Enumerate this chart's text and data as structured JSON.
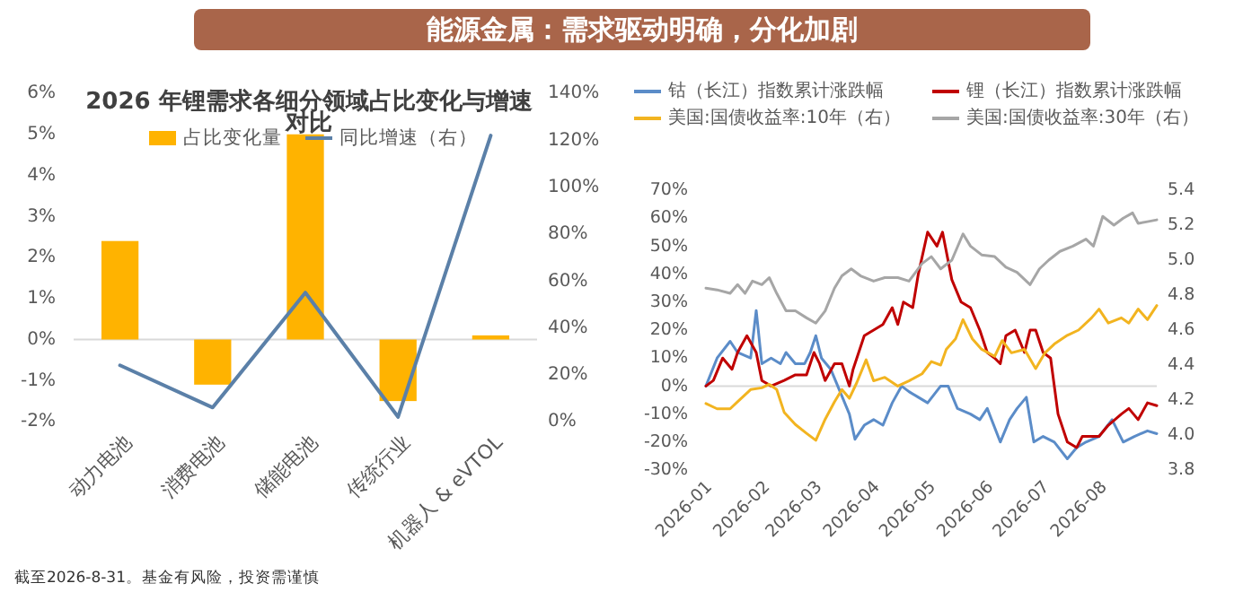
{
  "chart_data": [
    {
      "type": "other",
      "title": "能源金属：需求驱动明确，分化加剧"
    },
    {
      "type": "bar",
      "title": "2026 年锂需求各细分领域占比变化与增速对比",
      "categories": [
        "动力电池",
        "消费电池",
        "储能电池",
        "传统行业",
        "机器人 & eVTOL"
      ],
      "series": [
        {
          "name": "占比变化量",
          "color": "#ffb300",
          "values": [
            2.4,
            -1.1,
            5.0,
            -1.5,
            0.1
          ]
        },
        {
          "name": "同比增速（右）",
          "type": "line",
          "axis": "y2",
          "color": "#5b80a8",
          "values": [
            24,
            6,
            55,
            2,
            122
          ]
        }
      ],
      "ylim": [
        -2,
        6
      ],
      "yticks": [
        {
          "value": -2,
          "label": "-2%"
        },
        {
          "value": -1,
          "label": "-1%"
        },
        {
          "value": 0,
          "label": "0%"
        },
        {
          "value": 1,
          "label": "1%"
        },
        {
          "value": 2,
          "label": "2%"
        },
        {
          "value": 3,
          "label": "3%"
        },
        {
          "value": 4,
          "label": "4%"
        },
        {
          "value": 5,
          "label": "5%"
        },
        {
          "value": 6,
          "label": "6%"
        }
      ],
      "y2lim": [
        0,
        140
      ],
      "y2ticks": [
        {
          "value": 0,
          "label": "0%"
        },
        {
          "value": 20,
          "label": "20%"
        },
        {
          "value": 40,
          "label": "40%"
        },
        {
          "value": 60,
          "label": "60%"
        },
        {
          "value": 80,
          "label": "80%"
        },
        {
          "value": 100,
          "label": "100%"
        },
        {
          "value": 120,
          "label": "120%"
        },
        {
          "value": 140,
          "label": "140%"
        }
      ],
      "legend": "top",
      "annotations": [
        "截至2026-8-31。基金有风险，投资需谨慎"
      ]
    },
    {
      "type": "line",
      "series": [
        {
          "name": "钴（长江）指数累计涨跌幅",
          "color": "#5b8cc8",
          "x": [
            "2026-01-01",
            "2026-01-07",
            "2026-01-14",
            "2026-01-18",
            "2026-01-25",
            "2026-01-28",
            "2026-01-31",
            "2026-02-05",
            "2026-02-10",
            "2026-02-13",
            "2026-02-18",
            "2026-02-23",
            "2026-02-26",
            "2026-03-01",
            "2026-03-04",
            "2026-03-09",
            "2026-03-14",
            "2026-03-19",
            "2026-03-22",
            "2026-03-27",
            "2026-04-01",
            "2026-04-06",
            "2026-04-11",
            "2026-04-16",
            "2026-04-20",
            "2026-04-25",
            "2026-04-30",
            "2026-05-07",
            "2026-05-11",
            "2026-05-16",
            "2026-05-23",
            "2026-05-28",
            "2026-06-01",
            "2026-06-08",
            "2026-06-13",
            "2026-06-17",
            "2026-06-22",
            "2026-06-26",
            "2026-07-01",
            "2026-07-07",
            "2026-07-14",
            "2026-07-19",
            "2026-07-24",
            "2026-07-31",
            "2026-08-07",
            "2026-08-13",
            "2026-08-19",
            "2026-08-26",
            "2026-08-31"
          ],
          "values": [
            0,
            10,
            16,
            12,
            10,
            27,
            8,
            10,
            8,
            12,
            8,
            8,
            12,
            18,
            10,
            6,
            -2,
            -10,
            -19,
            -14,
            -12,
            -14,
            -6,
            0,
            -2,
            -4,
            -6,
            0,
            0,
            -8,
            -10,
            -12,
            -8,
            -20,
            -12,
            -8,
            -4,
            -20,
            -18,
            -20,
            -26,
            -22,
            -20,
            -18,
            -12,
            -20,
            -18,
            -16,
            -17
          ]
        },
        {
          "name": "锂（长江）指数累计涨跌幅",
          "color": "#c00000",
          "x": [
            "2026-01-01",
            "2026-01-05",
            "2026-01-10",
            "2026-01-15",
            "2026-01-18",
            "2026-01-23",
            "2026-01-28",
            "2026-01-31",
            "2026-02-05",
            "2026-02-12",
            "2026-02-18",
            "2026-02-24",
            "2026-02-28",
            "2026-03-03",
            "2026-03-06",
            "2026-03-11",
            "2026-03-15",
            "2026-03-19",
            "2026-03-21",
            "2026-03-27",
            "2026-04-01",
            "2026-04-06",
            "2026-04-11",
            "2026-04-14",
            "2026-04-17",
            "2026-04-22",
            "2026-04-25",
            "2026-04-30",
            "2026-05-05",
            "2026-05-08",
            "2026-05-13",
            "2026-05-18",
            "2026-05-23",
            "2026-05-28",
            "2026-06-01",
            "2026-06-05",
            "2026-06-08",
            "2026-06-11",
            "2026-06-16",
            "2026-06-21",
            "2026-06-24",
            "2026-06-27",
            "2026-07-01",
            "2026-07-05",
            "2026-07-09",
            "2026-07-14",
            "2026-07-19",
            "2026-07-22",
            "2026-07-27",
            "2026-07-31",
            "2026-08-05",
            "2026-08-12",
            "2026-08-16",
            "2026-08-21",
            "2026-08-26",
            "2026-08-31"
          ],
          "values": [
            0,
            2,
            10,
            6,
            12,
            18,
            12,
            2,
            0,
            2,
            4,
            4,
            12,
            8,
            2,
            8,
            8,
            0,
            6,
            18,
            20,
            22,
            28,
            22,
            30,
            28,
            40,
            55,
            50,
            55,
            38,
            30,
            28,
            20,
            12,
            10,
            8,
            18,
            20,
            12,
            20,
            20,
            12,
            10,
            -10,
            -20,
            -22,
            -18,
            -18,
            -18,
            -14,
            -10,
            -8,
            -12,
            -6,
            -7
          ]
        },
        {
          "name": "美国:国债收益率:10年（右）",
          "color": "#f2b420",
          "axis": "y2",
          "x": [
            "2026-01-01",
            "2026-01-07",
            "2026-01-14",
            "2026-01-18",
            "2026-01-25",
            "2026-01-31",
            "2026-02-04",
            "2026-02-08",
            "2026-02-12",
            "2026-02-18",
            "2026-02-24",
            "2026-03-01",
            "2026-03-06",
            "2026-03-11",
            "2026-03-15",
            "2026-03-19",
            "2026-03-23",
            "2026-03-28",
            "2026-04-01",
            "2026-04-07",
            "2026-04-14",
            "2026-04-20",
            "2026-04-27",
            "2026-05-02",
            "2026-05-07",
            "2026-05-10",
            "2026-05-15",
            "2026-05-19",
            "2026-05-24",
            "2026-05-29",
            "2026-06-05",
            "2026-06-09",
            "2026-06-14",
            "2026-06-21",
            "2026-06-27",
            "2026-07-02",
            "2026-07-07",
            "2026-07-14",
            "2026-07-20",
            "2026-07-27",
            "2026-07-31",
            "2026-08-05",
            "2026-08-12",
            "2026-08-16",
            "2026-08-21",
            "2026-08-26",
            "2026-08-31"
          ],
          "values": [
            4.18,
            4.15,
            4.15,
            4.19,
            4.26,
            4.27,
            4.29,
            4.26,
            4.13,
            4.06,
            4.01,
            3.97,
            4.09,
            4.19,
            4.26,
            4.21,
            4.3,
            4.43,
            4.31,
            4.33,
            4.28,
            4.31,
            4.35,
            4.42,
            4.4,
            4.49,
            4.55,
            4.66,
            4.55,
            4.49,
            4.45,
            4.54,
            4.47,
            4.49,
            4.38,
            4.47,
            4.52,
            4.57,
            4.6,
            4.67,
            4.72,
            4.64,
            4.67,
            4.64,
            4.72,
            4.66,
            4.74
          ]
        },
        {
          "name": "美国:国债收益率:30年（右）",
          "color": "#a6a6a6",
          "axis": "y2",
          "x": [
            "2026-01-01",
            "2026-01-07",
            "2026-01-14",
            "2026-01-18",
            "2026-01-22",
            "2026-01-26",
            "2026-01-31",
            "2026-02-04",
            "2026-02-08",
            "2026-02-13",
            "2026-02-18",
            "2026-02-24",
            "2026-03-01",
            "2026-03-06",
            "2026-03-11",
            "2026-03-15",
            "2026-03-20",
            "2026-03-25",
            "2026-04-01",
            "2026-04-07",
            "2026-04-14",
            "2026-04-20",
            "2026-04-27",
            "2026-05-02",
            "2026-05-07",
            "2026-05-13",
            "2026-05-19",
            "2026-05-23",
            "2026-05-29",
            "2026-06-05",
            "2026-06-11",
            "2026-06-17",
            "2026-06-24",
            "2026-06-29",
            "2026-07-04",
            "2026-07-10",
            "2026-07-17",
            "2026-07-24",
            "2026-07-28",
            "2026-08-02",
            "2026-08-08",
            "2026-08-13",
            "2026-08-18",
            "2026-08-21",
            "2026-08-26",
            "2026-08-31"
          ],
          "values": [
            4.84,
            4.83,
            4.81,
            4.86,
            4.81,
            4.88,
            4.86,
            4.9,
            4.81,
            4.71,
            4.71,
            4.67,
            4.64,
            4.71,
            4.84,
            4.91,
            4.95,
            4.91,
            4.88,
            4.9,
            4.9,
            4.88,
            4.98,
            5.02,
            4.95,
            5.0,
            5.15,
            5.08,
            5.03,
            5.02,
            4.96,
            4.93,
            4.86,
            4.95,
            5.0,
            5.05,
            5.08,
            5.12,
            5.08,
            5.25,
            5.2,
            5.24,
            5.27,
            5.21,
            5.22,
            5.23
          ]
        }
      ],
      "xlim": [
        "2026-01-01",
        "2026-08-31"
      ],
      "xticks": [
        "2026-01",
        "2026-02",
        "2026-03",
        "2026-04",
        "2026-05",
        "2026-06",
        "2026-07",
        "2026-08"
      ],
      "ylim": [
        -30,
        70
      ],
      "yticks": [
        {
          "value": -30,
          "label": "-30%"
        },
        {
          "value": -20,
          "label": "-20%"
        },
        {
          "value": -10,
          "label": "-10%"
        },
        {
          "value": 0,
          "label": "0%"
        },
        {
          "value": 10,
          "label": "10%"
        },
        {
          "value": 20,
          "label": "20%"
        },
        {
          "value": 30,
          "label": "30%"
        },
        {
          "value": 40,
          "label": "40%"
        },
        {
          "value": 50,
          "label": "50%"
        },
        {
          "value": 60,
          "label": "60%"
        },
        {
          "value": 70,
          "label": "70%"
        }
      ],
      "y2lim": [
        3.8,
        5.4
      ],
      "y2ticks": [
        {
          "value": 3.8,
          "label": "3.8"
        },
        {
          "value": 4.0,
          "label": "4.0"
        },
        {
          "value": 4.2,
          "label": "4.2"
        },
        {
          "value": 4.4,
          "label": "4.4"
        },
        {
          "value": 4.6,
          "label": "4.6"
        },
        {
          "value": 4.8,
          "label": "4.8"
        },
        {
          "value": 5.0,
          "label": "5.0"
        },
        {
          "value": 5.2,
          "label": "5.2"
        },
        {
          "value": 5.4,
          "label": "5.4"
        }
      ],
      "legend": "top"
    }
  ]
}
